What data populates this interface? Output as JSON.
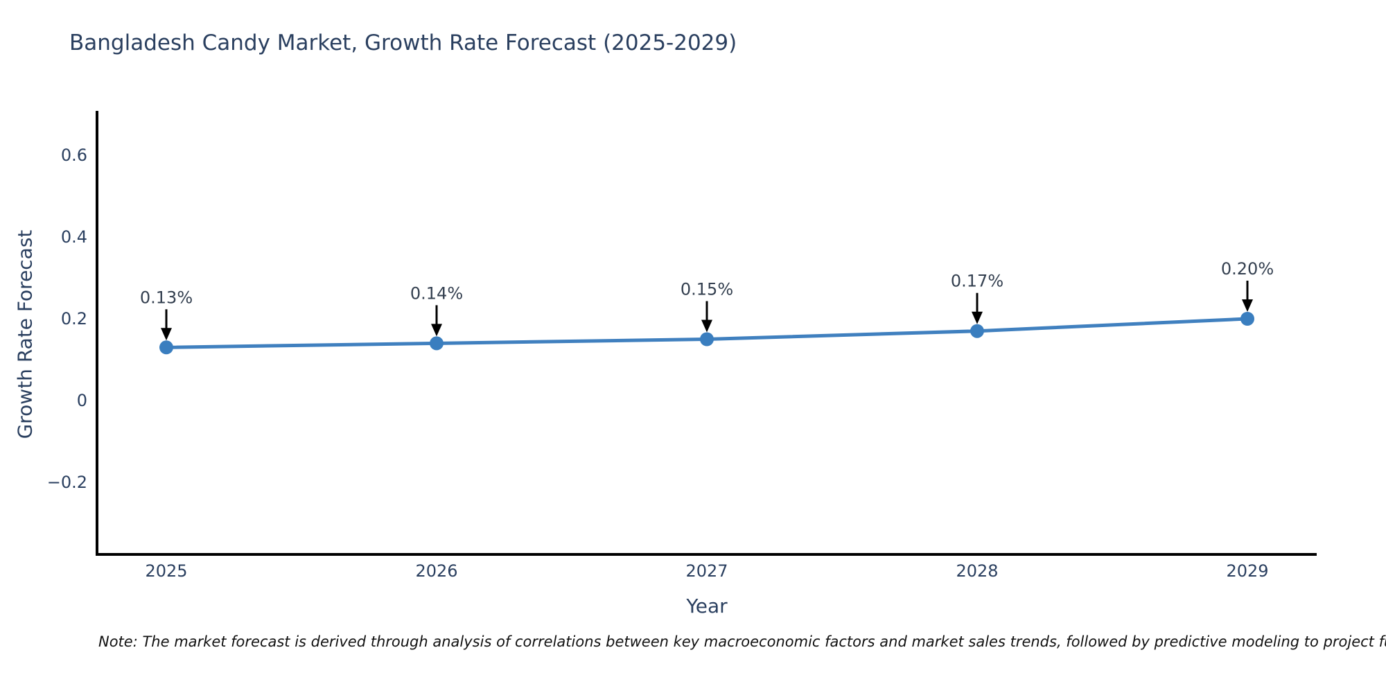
{
  "title": "Bangladesh Candy Market, Growth Rate Forecast (2025-2029)",
  "footnote": "Note: The market forecast is derived through analysis of correlations between key macroeconomic factors and market sales trends, followed by predictive modeling to project future sa",
  "chart_data": {
    "type": "line",
    "title": "Bangladesh Candy Market, Growth Rate Forecast (2025-2029)",
    "xlabel": "Year",
    "ylabel": "Growth Rate Forecast",
    "x": [
      2025,
      2026,
      2027,
      2028,
      2029
    ],
    "x_tick_labels": [
      "2025",
      "2026",
      "2027",
      "2028",
      "2029"
    ],
    "series": [
      {
        "name": "Growth Rate Forecast",
        "values": [
          0.13,
          0.14,
          0.15,
          0.17,
          0.2
        ]
      }
    ],
    "point_labels": [
      "0.13%",
      "0.14%",
      "0.15%",
      "0.17%",
      "0.20%"
    ],
    "ytick_values": [
      0.6,
      0.4,
      0.2,
      0,
      -0.2
    ],
    "ytick_labels": [
      "0.6",
      "0.4",
      "0.2",
      "0",
      "−0.2"
    ],
    "ylim": [
      -0.376,
      0.708
    ],
    "xlim": [
      2024.74,
      2029.26
    ],
    "grid": false,
    "legend": "none",
    "colors": {
      "line": "#4080bf",
      "marker": "#3a7ebf",
      "axis": "#000000",
      "tick_text": "#2a3f5f",
      "title_text": "#2a3f5f",
      "annotation_text": "#333f4f",
      "annotation_arrow": "#000000"
    }
  }
}
